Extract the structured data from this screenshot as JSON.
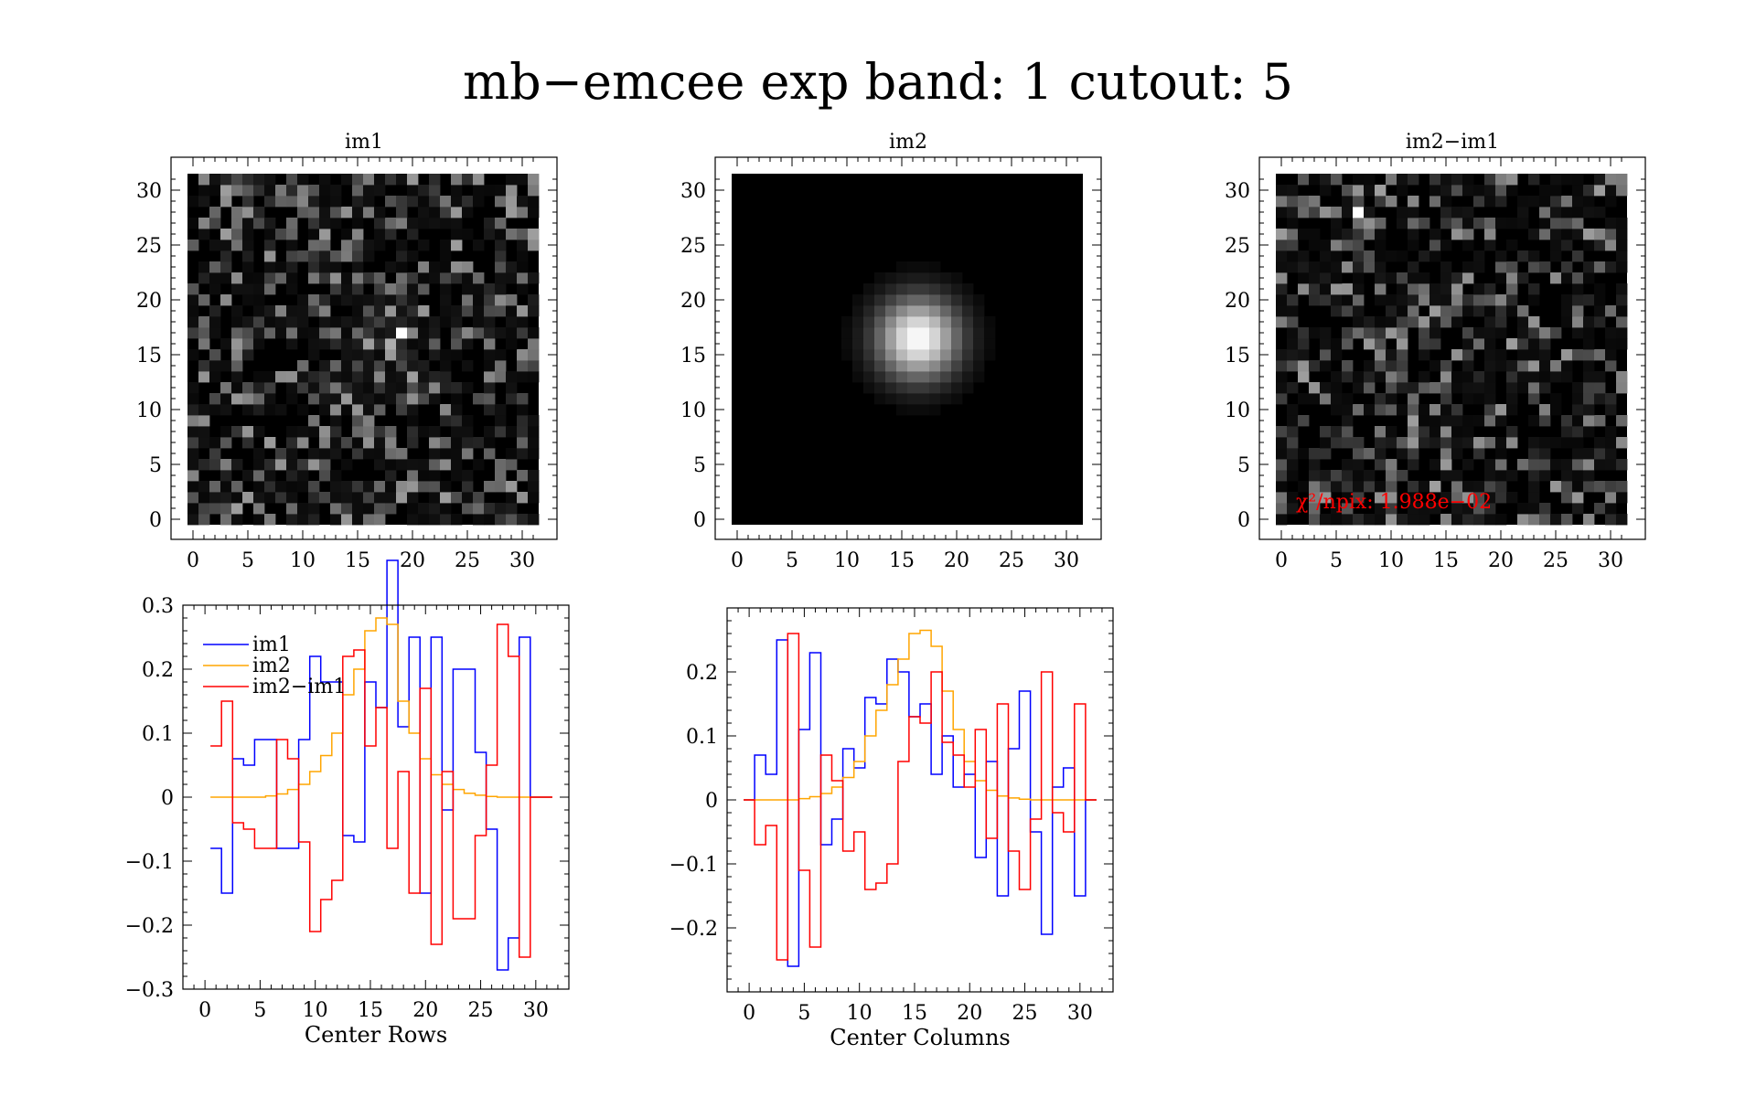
{
  "figure": {
    "title": "mb−emcee exp band: 1 cutout: 5"
  },
  "panels": {
    "im1_title": "im1",
    "im2_title": "im2",
    "diff_title": "im2−im1",
    "chi2_label": "χ²/npix: 1.988e−02"
  },
  "legend": {
    "im1": "im1",
    "im2": "im2",
    "diff": "im2−im1"
  },
  "colors": {
    "im1": "#0000ff",
    "im2": "#ffa500",
    "diff": "#ff0000",
    "chi2_text": "#ff0000"
  },
  "chart_data": [
    {
      "type": "heatmap",
      "title": "im1",
      "colormap": "gray",
      "xlim": [
        0,
        31
      ],
      "ylim": [
        0,
        31
      ],
      "xticks": [
        0,
        5,
        10,
        15,
        20,
        25,
        30
      ],
      "yticks": [
        0,
        5,
        10,
        15,
        20,
        25,
        30
      ],
      "peak_pixel": [
        19,
        17
      ],
      "description": "noisy 32x32 cutout"
    },
    {
      "type": "heatmap",
      "title": "im2",
      "colormap": "gray",
      "xlim": [
        0,
        31
      ],
      "ylim": [
        0,
        31
      ],
      "xticks": [
        0,
        5,
        10,
        15,
        20,
        25,
        30
      ],
      "yticks": [
        0,
        5,
        10,
        15,
        20,
        25,
        30
      ],
      "center": [
        16.5,
        16.5
      ],
      "sigma": 2.6
    },
    {
      "type": "heatmap",
      "title": "im2−im1",
      "colormap": "gray",
      "xlim": [
        0,
        31
      ],
      "ylim": [
        0,
        31
      ],
      "xticks": [
        0,
        5,
        10,
        15,
        20,
        25,
        30
      ],
      "yticks": [
        0,
        5,
        10,
        15,
        20,
        25,
        30
      ],
      "peak_pixel": [
        7,
        28
      ],
      "annotation": "χ²/npix: 1.988e−02"
    },
    {
      "type": "line",
      "drawstyle": "steps-mid",
      "xlabel": "Center Rows",
      "xlim": [
        -2,
        33
      ],
      "ylim": [
        -0.3,
        0.3
      ],
      "xticks": [
        0,
        5,
        10,
        15,
        20,
        25,
        30
      ],
      "yticks": [
        -0.3,
        -0.2,
        -0.1,
        0,
        0.1,
        0.2,
        0.3
      ],
      "ytick_labels": [
        "−0.3",
        "−0.2",
        "−0.1",
        "0",
        "0.1",
        "0.2",
        "0.3"
      ],
      "legend": "top-left",
      "x": [
        1,
        2,
        3,
        4,
        5,
        6,
        7,
        8,
        9,
        10,
        11,
        12,
        13,
        14,
        15,
        16,
        17,
        18,
        19,
        20,
        21,
        22,
        23,
        24,
        25,
        26,
        27,
        28,
        29,
        30,
        31
      ],
      "series": [
        {
          "name": "im1",
          "color": "#0000ff",
          "values": [
            -0.08,
            -0.15,
            0.06,
            0.05,
            0.09,
            0.09,
            -0.08,
            -0.08,
            0.09,
            0.22,
            0.18,
            0.18,
            -0.06,
            -0.07,
            0.18,
            0.14,
            0.37,
            0.11,
            0.25,
            -0.15,
            0.25,
            -0.02,
            0.2,
            0.2,
            0.07,
            -0.05,
            -0.27,
            -0.22,
            0.25,
            0.0,
            0.0
          ]
        },
        {
          "name": "im2",
          "color": "#ffa500",
          "values": [
            0.0,
            0.0,
            0.0,
            0.0,
            0.0,
            0.002,
            0.005,
            0.012,
            0.02,
            0.04,
            0.065,
            0.1,
            0.16,
            0.2,
            0.26,
            0.28,
            0.27,
            0.15,
            0.1,
            0.06,
            0.035,
            0.02,
            0.012,
            0.006,
            0.003,
            0.001,
            0.0,
            0.0,
            0.0,
            0.0,
            0.0
          ]
        },
        {
          "name": "im2−im1",
          "color": "#ff0000",
          "values": [
            0.08,
            0.15,
            -0.04,
            -0.05,
            -0.08,
            -0.08,
            0.09,
            0.06,
            -0.07,
            -0.21,
            -0.16,
            -0.13,
            0.22,
            0.23,
            0.08,
            0.14,
            -0.08,
            0.04,
            -0.15,
            0.17,
            -0.23,
            0.04,
            -0.19,
            -0.19,
            -0.06,
            0.05,
            0.27,
            0.22,
            -0.25,
            0.0,
            0.0
          ]
        }
      ]
    },
    {
      "type": "line",
      "drawstyle": "steps-mid",
      "xlabel": "Center Columns",
      "xlim": [
        -2,
        33
      ],
      "ylim": [
        -0.3,
        0.3
      ],
      "xticks": [
        0,
        5,
        10,
        15,
        20,
        25,
        30
      ],
      "yticks": [
        -0.2,
        -0.1,
        0,
        0.1,
        0.2
      ],
      "ytick_labels": [
        "−0.2",
        "−0.1",
        "0",
        "0.1",
        "0.2"
      ],
      "x": [
        0,
        1,
        2,
        3,
        4,
        5,
        6,
        7,
        8,
        9,
        10,
        11,
        12,
        13,
        14,
        15,
        16,
        17,
        18,
        19,
        20,
        21,
        22,
        23,
        24,
        25,
        26,
        27,
        28,
        29,
        30,
        31
      ],
      "series": [
        {
          "name": "im1",
          "color": "#0000ff",
          "values": [
            0.0,
            0.07,
            0.04,
            0.25,
            -0.26,
            0.11,
            0.23,
            -0.07,
            -0.03,
            0.08,
            0.05,
            0.16,
            0.15,
            0.22,
            0.2,
            0.13,
            0.15,
            0.04,
            0.1,
            0.02,
            0.04,
            -0.09,
            0.06,
            -0.15,
            0.08,
            0.17,
            -0.05,
            -0.21,
            0.02,
            0.05,
            -0.15,
            0.0
          ]
        },
        {
          "name": "im2",
          "color": "#ffa500",
          "values": [
            0.0,
            0.0,
            0.0,
            0.0,
            0.0,
            0.002,
            0.005,
            0.01,
            0.02,
            0.035,
            0.06,
            0.1,
            0.14,
            0.18,
            0.22,
            0.26,
            0.265,
            0.24,
            0.17,
            0.11,
            0.06,
            0.03,
            0.015,
            0.006,
            0.003,
            0.001,
            0.0,
            0.0,
            0.0,
            0.0,
            0.0,
            0.0
          ]
        },
        {
          "name": "im2−im1",
          "color": "#ff0000",
          "values": [
            0.0,
            -0.07,
            -0.04,
            -0.25,
            0.26,
            -0.11,
            -0.23,
            0.07,
            0.03,
            -0.08,
            -0.05,
            -0.14,
            -0.13,
            -0.1,
            0.06,
            0.13,
            0.12,
            0.2,
            0.09,
            0.07,
            0.02,
            0.11,
            -0.06,
            0.15,
            -0.08,
            -0.14,
            -0.03,
            0.2,
            -0.02,
            -0.05,
            0.15,
            0.0
          ]
        }
      ]
    }
  ]
}
